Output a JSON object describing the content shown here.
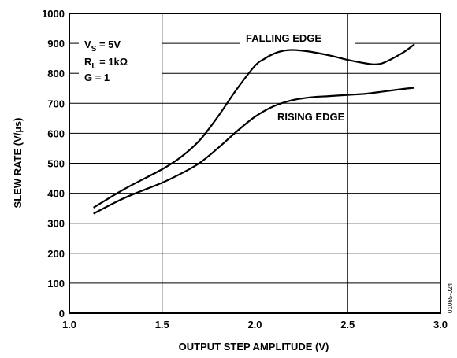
{
  "chart_data": {
    "type": "line",
    "xlabel": "OUTPUT STEP AMPLITUDE (V)",
    "ylabel": "SLEW RATE (V/µs)",
    "xlim": [
      1.0,
      3.0
    ],
    "ylim": [
      0,
      1000
    ],
    "x_ticks": [
      "1.0",
      "1.5",
      "2.0",
      "2.5",
      "3.0"
    ],
    "y_ticks": [
      "0",
      "100",
      "200",
      "300",
      "400",
      "500",
      "600",
      "700",
      "800",
      "900",
      "1000"
    ],
    "grid": true,
    "conditions": {
      "vs": {
        "main": "V",
        "sub": "S",
        "rest": " = 5V"
      },
      "rl": {
        "main": "R",
        "sub": "L",
        "rest": " = 1kΩ"
      },
      "g": "G = 1"
    },
    "figure_id": "01065-024",
    "series": [
      {
        "name": "FALLING EDGE",
        "x": [
          1.13,
          1.3,
          1.5,
          1.6,
          1.7,
          1.8,
          1.9,
          2.0,
          2.05,
          2.1,
          2.15,
          2.2,
          2.25,
          2.3,
          2.4,
          2.5,
          2.6,
          2.65,
          2.7,
          2.8,
          2.86
        ],
        "y": [
          352,
          415,
          480,
          520,
          575,
          655,
          745,
          825,
          848,
          865,
          875,
          878,
          876,
          872,
          860,
          845,
          833,
          830,
          837,
          870,
          897
        ]
      },
      {
        "name": "RISING EDGE",
        "x": [
          1.13,
          1.3,
          1.5,
          1.6,
          1.7,
          1.8,
          1.9,
          2.0,
          2.1,
          2.2,
          2.3,
          2.4,
          2.5,
          2.6,
          2.7,
          2.8,
          2.86
        ],
        "y": [
          332,
          385,
          435,
          465,
          500,
          550,
          605,
          655,
          690,
          710,
          720,
          724,
          728,
          732,
          740,
          748,
          752
        ]
      }
    ]
  }
}
